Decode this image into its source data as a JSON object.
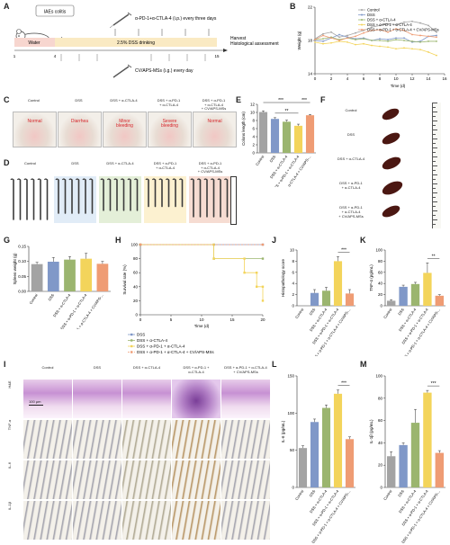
{
  "colors": {
    "control": "#a3a3a3",
    "dss": "#8098c8",
    "ctla4": "#9bb56f",
    "pd1ctla4": "#f3d45b",
    "cvaps": "#ef9c74"
  },
  "panel_labels": {
    "A": "A",
    "B": "B",
    "C": "C",
    "D": "D",
    "E": "E",
    "F": "F",
    "G": "G",
    "H": "H",
    "I": "I",
    "J": "J",
    "K": "K",
    "L": "L",
    "M": "M"
  },
  "panelA": {
    "box_label": "IAEs colitis",
    "treatment_top": "α-PD-1+α-CTLA-4 (i.p.) every three days",
    "water": "Water",
    "dss": "2.5% DSS drinking",
    "harvest": "Harvest\nHistological assessment",
    "treatment_bottom": "CV/APS-MSs (i.g.) every day",
    "ticks": [
      "1",
      "4",
      "15"
    ]
  },
  "groups": [
    "Control",
    "DSS",
    "DSS + α-CTLA-4",
    "DSS + α-PD-1 + α-CTLA-4",
    "DSS + α-PD-1 + α-CTLA-4 + CV/APS-MSs"
  ],
  "groups_trunc": [
    "Control",
    "DSS",
    "DSS + α-CTLA-4",
    "DSS + α-PD-1 + α-CTLA-4",
    "DSS + α-PD-1 + α-CTLA-4 + CV/APS-..."
  ],
  "panelC": {
    "titles": [
      "Control",
      "DSS",
      "DSS + α-CTLA-4",
      "DSS + α-PD-1\n+ α-CTLA-4",
      "DSS + α-PD-1\n+ α-CTLA-4\n+ CV/APS-MSs"
    ],
    "notes": [
      "Normal",
      "Diarrhea",
      "Minor\nbleeding",
      "Severe\nbleeding",
      "Normal"
    ]
  },
  "panelD": {
    "titles": [
      "Control",
      "DSS",
      "DSS + α-CTLA-4",
      "DSS + α-PD-1\n+ α-CTLA-4",
      "DSS + α-PD-1\n+ α-CTLA-4\n+ CV/APS-MSs"
    ]
  },
  "panelF": {
    "labels": [
      "Control",
      "DSS",
      "DSS + α-CTLA-4",
      "DSS + α-PD-1\n+ α-CTLA-4",
      "DSS + α-PD-1\n+ α-CTLA-4\n+ CV/APS-MSs"
    ]
  },
  "panelI": {
    "columns": [
      "Control",
      "DSS",
      "DSS + α-CTLA-4",
      "DSS + α-PD-1 +\nα-CTLA-4",
      "DSS + α-PD-1 + α-CTLA-4\n+ CV/APS-MSs"
    ],
    "rows": [
      "H&E",
      "TNF-α",
      "IL-6",
      "IL-1β"
    ],
    "scale": "100 µm"
  },
  "chart_data": [
    {
      "id": "B",
      "type": "line",
      "ylabel": "Weight (g)",
      "xlabel": "Time (d)",
      "ylim": [
        14,
        22
      ],
      "yticks": [
        14,
        18,
        22
      ],
      "xticks": [
        0,
        2,
        4,
        6,
        8,
        10,
        12,
        14,
        16
      ],
      "legend": [
        "Control",
        "DSS",
        "DSS + α-CTLA-4",
        "DSS + α-PD-1 + α-CTLA-4",
        "DSS + α-PD-1 + α-CTLA-4 + CV/APS-MSs"
      ],
      "x": [
        0,
        1,
        2,
        3,
        4,
        5,
        6,
        7,
        8,
        9,
        10,
        11,
        12,
        13,
        14,
        15
      ],
      "series": [
        {
          "name": "Control",
          "values": [
            18.2,
            18.8,
            19.0,
            18.4,
            18.6,
            18.9,
            19.2,
            19.6,
            19.8,
            20.0,
            19.9,
            20.2,
            20.3,
            20.1,
            19.8,
            19.0
          ]
        },
        {
          "name": "DSS",
          "values": [
            18.0,
            17.9,
            18.3,
            18.7,
            18.4,
            18.2,
            18.3,
            18.0,
            18.2,
            18.1,
            18.3,
            18.3,
            17.8,
            17.9,
            18.5,
            18.6
          ]
        },
        {
          "name": "DSS + α-CTLA-4",
          "values": [
            18.1,
            18.2,
            18.4,
            18.1,
            18.3,
            18.1,
            18.2,
            18.0,
            18.0,
            17.9,
            18.1,
            18.0,
            17.9,
            17.8,
            17.9,
            17.9
          ]
        },
        {
          "name": "DSS + α-PD-1 + α-CTLA-4",
          "values": [
            17.8,
            17.6,
            17.7,
            17.9,
            17.8,
            17.5,
            17.6,
            17.4,
            17.3,
            17.2,
            17.0,
            17.1,
            17.0,
            16.9,
            16.6,
            16.2
          ]
        },
        {
          "name": "DSS + α-PD-1 + α-CTLA-4 + CV/APS-MSs",
          "values": [
            18.1,
            18.6,
            18.3,
            18.0,
            18.3,
            18.5,
            18.9,
            19.2,
            19.3,
            19.0,
            19.4,
            19.2,
            18.7,
            18.6,
            18.5,
            18.4
          ]
        }
      ]
    },
    {
      "id": "E",
      "type": "bar",
      "ylabel": "Colons length (cm)",
      "ylim": [
        0,
        12
      ],
      "yticks": [
        0,
        2,
        4,
        6,
        8,
        10,
        12
      ],
      "values": [
        10.1,
        8.4,
        7.7,
        6.7,
        9.3
      ],
      "errors": [
        0.3,
        0.3,
        0.4,
        0.4,
        0.2
      ],
      "sig": [
        {
          "from": 1,
          "to": 3,
          "label": "**"
        },
        {
          "from": 0,
          "to": 3,
          "label": "***"
        },
        {
          "from": 3,
          "to": 4,
          "label": "***"
        }
      ]
    },
    {
      "id": "G",
      "type": "bar",
      "ylabel": "Spleen weight (g)",
      "ylim": [
        0,
        0.15
      ],
      "yticks": [
        0.0,
        0.05,
        0.1,
        0.15
      ],
      "values": [
        0.091,
        0.099,
        0.106,
        0.109,
        0.092
      ],
      "errors": [
        0.006,
        0.014,
        0.01,
        0.018,
        0.008
      ]
    },
    {
      "id": "H",
      "type": "line",
      "ylabel": "Survival rate (%)",
      "xlabel": "Time (d)",
      "ylim": [
        0,
        100
      ],
      "yticks": [
        0,
        20,
        40,
        60,
        80,
        100
      ],
      "xticks": [
        0,
        5,
        10,
        15,
        20
      ],
      "legend": [
        "DSS",
        "DSS + α-CTLA-4",
        "DSS + α-PD-1 + α-CTLA-4",
        "DSS + α-PD-1 + α-CTLA-4 + CV/APS-MSs"
      ],
      "series": [
        {
          "name": "DSS",
          "points": [
            [
              0,
              100
            ],
            [
              20,
              100
            ]
          ]
        },
        {
          "name": "DSS + α-CTLA-4",
          "points": [
            [
              0,
              100
            ],
            [
              12,
              100
            ],
            [
              12,
              80
            ],
            [
              20,
              80
            ]
          ]
        },
        {
          "name": "DSS + α-PD-1 + α-CTLA-4",
          "points": [
            [
              0,
              100
            ],
            [
              12,
              100
            ],
            [
              12,
              80
            ],
            [
              17,
              80
            ],
            [
              17,
              60
            ],
            [
              19,
              60
            ],
            [
              19,
              40
            ],
            [
              20,
              40
            ],
            [
              20,
              20
            ]
          ]
        },
        {
          "name": "DSS + α-PD-1 + α-CTLA-4 + CV/APS-MSs",
          "points": [
            [
              0,
              100
            ],
            [
              20,
              100
            ]
          ]
        }
      ]
    },
    {
      "id": "J",
      "type": "bar",
      "ylabel": "Histopathology score",
      "ylim": [
        0,
        10
      ],
      "yticks": [
        0,
        2,
        4,
        6,
        8,
        10
      ],
      "values": [
        0.0,
        2.3,
        2.7,
        8.0,
        2.2
      ],
      "errors": [
        0,
        0.6,
        0.6,
        0.8,
        0.7
      ],
      "sig": [
        {
          "from": 3,
          "to": 4,
          "label": "***"
        }
      ]
    },
    {
      "id": "K",
      "type": "bar",
      "ylabel": "TNF-α (pg/mL)",
      "ylim": [
        0,
        100
      ],
      "yticks": [
        0,
        20,
        40,
        60,
        80,
        100
      ],
      "values": [
        9,
        34,
        39,
        59,
        18
      ],
      "errors": [
        2,
        3,
        3,
        18,
        2
      ],
      "sig": [
        {
          "from": 3,
          "to": 4,
          "label": "**"
        }
      ]
    },
    {
      "id": "L",
      "type": "bar",
      "ylabel": "IL-6 (pg/mL)",
      "ylim": [
        0,
        150
      ],
      "yticks": [
        0,
        50,
        100,
        150
      ],
      "values": [
        53,
        88,
        107,
        126,
        65
      ],
      "errors": [
        3,
        4,
        4,
        5,
        3
      ],
      "sig": [
        {
          "from": 3,
          "to": 4,
          "label": "***"
        }
      ]
    },
    {
      "id": "M",
      "type": "bar",
      "ylabel": "IL-1β (pg/mL)",
      "ylim": [
        0,
        100
      ],
      "yticks": [
        0,
        20,
        40,
        60,
        80,
        100
      ],
      "values": [
        28,
        38,
        58,
        85,
        31
      ],
      "errors": [
        4,
        2,
        12,
        2,
        2
      ],
      "sig": [
        {
          "from": 3,
          "to": 4,
          "label": "***"
        }
      ]
    }
  ]
}
